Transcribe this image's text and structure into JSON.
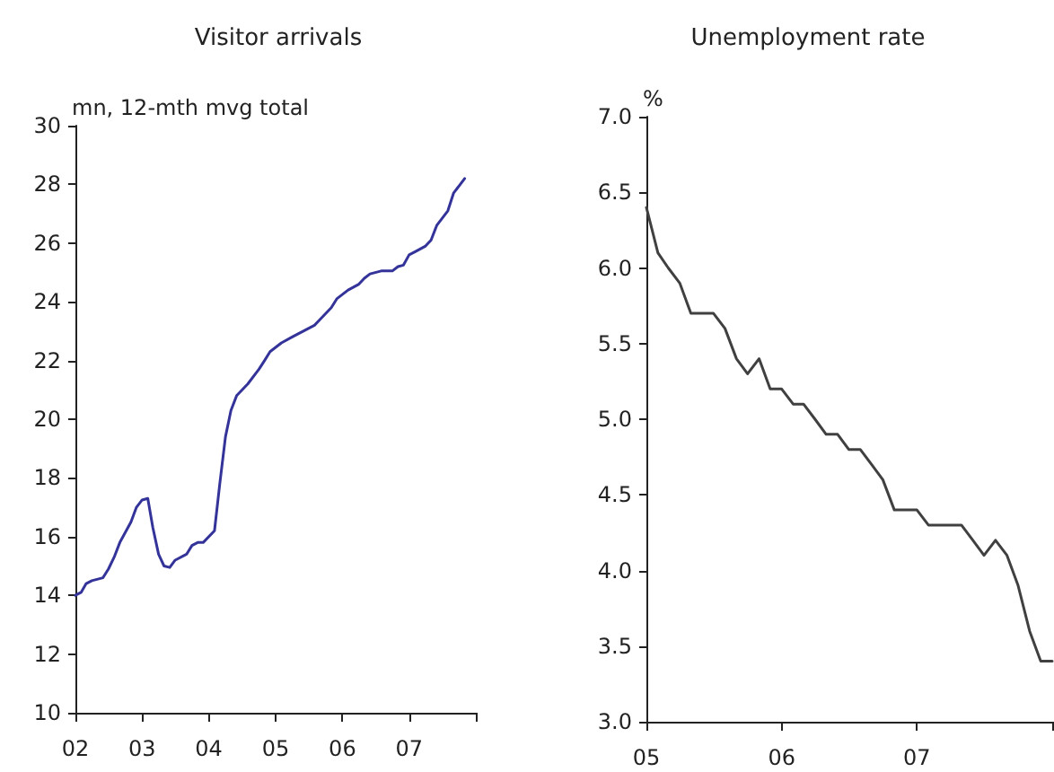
{
  "chart_data": [
    {
      "type": "line",
      "title": "Visitor arrivals",
      "ylabel": "mn, 12-mth mvg total",
      "marker": "none",
      "grid": false,
      "x": [
        "2002-01",
        "2002-02",
        "2002-03",
        "2002-04",
        "2002-06",
        "2002-07",
        "2002-08",
        "2002-09",
        "2002-11",
        "2002-12",
        "2003-01",
        "2003-02",
        "2003-03",
        "2003-04",
        "2003-05",
        "2003-06",
        "2003-07",
        "2003-09",
        "2003-10",
        "2003-11",
        "2003-12",
        "2004-02",
        "2004-03",
        "2004-04",
        "2004-05",
        "2004-06",
        "2004-08",
        "2004-10",
        "2004-11",
        "2004-12",
        "2005-02",
        "2005-04",
        "2005-06",
        "2005-08",
        "2005-09",
        "2005-11",
        "2005-12",
        "2006-02",
        "2006-04",
        "2006-05",
        "2006-06",
        "2006-08",
        "2006-10",
        "2006-11",
        "2006-12",
        "2007-01",
        "2007-02",
        "2007-04",
        "2007-05",
        "2007-06",
        "2007-08",
        "2007-09",
        "2007-11"
      ],
      "series": [
        {
          "color": "#333399",
          "values": [
            14.0,
            14.1,
            14.4,
            14.5,
            14.6,
            14.9,
            15.3,
            15.8,
            16.5,
            17.0,
            17.25,
            17.3,
            16.3,
            15.4,
            15.0,
            14.95,
            15.2,
            15.4,
            15.7,
            15.8,
            15.8,
            16.2,
            17.8,
            19.4,
            20.3,
            20.8,
            21.2,
            21.7,
            22.0,
            22.3,
            22.6,
            22.8,
            23.0,
            23.2,
            23.4,
            23.8,
            24.1,
            24.4,
            24.6,
            24.8,
            24.95,
            25.05,
            25.05,
            25.2,
            25.25,
            25.6,
            25.7,
            25.9,
            26.1,
            26.6,
            27.1,
            27.7,
            28.2
          ]
        }
      ],
      "xlim": [
        "2002-01",
        "2008-01"
      ],
      "xticks": [
        {
          "value": "2002",
          "label": "02"
        },
        {
          "value": "2003",
          "label": "03"
        },
        {
          "value": "2004",
          "label": "04"
        },
        {
          "value": "2005",
          "label": "05"
        },
        {
          "value": "2006",
          "label": "06"
        },
        {
          "value": "2007",
          "label": "07"
        },
        {
          "value": "2008",
          "label": null
        }
      ],
      "ylim": [
        10,
        30
      ],
      "yticks": [
        10,
        12,
        14,
        16,
        18,
        20,
        22,
        24,
        26,
        28,
        30
      ]
    },
    {
      "type": "line",
      "title": "Unemployment rate",
      "ylabel": "%",
      "marker": "none",
      "grid": false,
      "x": [
        "2005-01",
        "2005-02",
        "2005-03",
        "2005-04",
        "2005-05",
        "2005-06",
        "2005-07",
        "2005-08",
        "2005-09",
        "2005-10",
        "2005-11",
        "2005-12",
        "2006-01",
        "2006-02",
        "2006-03",
        "2006-04",
        "2006-05",
        "2006-06",
        "2006-07",
        "2006-08",
        "2006-09",
        "2006-10",
        "2006-11",
        "2006-12",
        "2007-01",
        "2007-02",
        "2007-03",
        "2007-04",
        "2007-05",
        "2007-06",
        "2007-07",
        "2007-08",
        "2007-09",
        "2007-10",
        "2007-11",
        "2007-12",
        "2008-01"
      ],
      "series": [
        {
          "color": "#404040",
          "values": [
            6.4,
            6.1,
            6.0,
            5.9,
            5.7,
            5.7,
            5.7,
            5.6,
            5.4,
            5.3,
            5.4,
            5.2,
            5.2,
            5.1,
            5.1,
            5.0,
            4.9,
            4.9,
            4.8,
            4.8,
            4.7,
            4.6,
            4.4,
            4.4,
            4.4,
            4.3,
            4.3,
            4.3,
            4.3,
            4.2,
            4.1,
            4.2,
            4.1,
            3.9,
            3.6,
            3.4,
            3.4
          ]
        }
      ],
      "xlim": [
        "2005-01",
        "2008-01"
      ],
      "xticks": [
        {
          "value": "2005",
          "label": "05"
        },
        {
          "value": "2006",
          "label": "06"
        },
        {
          "value": "2007",
          "label": "07"
        },
        {
          "value": "2008",
          "label": null
        }
      ],
      "ylim": [
        3,
        7
      ],
      "yticks": [
        {
          "value": 3,
          "label": "3.0"
        },
        {
          "value": 3.5,
          "label": "3.5"
        },
        {
          "value": 4,
          "label": "4.0"
        },
        {
          "value": 4.5,
          "label": "4.5"
        },
        {
          "value": 5,
          "label": "5.0"
        },
        {
          "value": 5.5,
          "label": "5.5"
        },
        {
          "value": 6,
          "label": "6.0"
        },
        {
          "value": 6.5,
          "label": "6.5"
        },
        {
          "value": 7,
          "label": "7.0"
        }
      ]
    }
  ]
}
